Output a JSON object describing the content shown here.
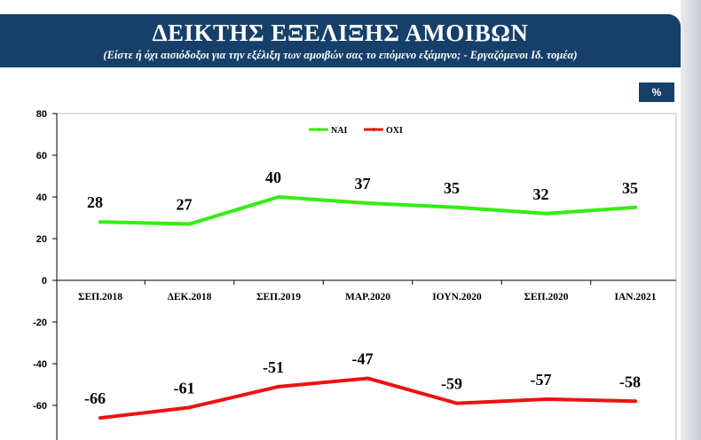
{
  "header": {
    "title": "ΔΕΙΚΤΗΣ ΕΞΕΛΙΞΗΣ ΑΜΟΙΒΩΝ",
    "subtitle": "(Είστε ή όχι αισιόδοξοι για την εξέλιξη των αμοιβών σας το επόμενο εξάμηνο; - Εργαζόμενοι Ιδ. τομέα)"
  },
  "unit_badge": "%",
  "colors": {
    "header_bg": "#16406a",
    "yes": "#33ee11",
    "no": "#ee1111"
  },
  "chart_data": {
    "type": "line",
    "title": "ΔΕΙΚΤΗΣ ΕΞΕΛΙΞΗΣ ΑΜΟΙΒΩΝ",
    "subtitle": "(Είστε ή όχι αισιόδοξοι για την εξέλιξη των αμοιβών σας το επόμενο εξάμηνο; - Εργαζόμενοι Ιδ. τομέα)",
    "unit": "%",
    "categories": [
      "ΣΕΠ.2018",
      "ΔΕΚ.2018",
      "ΣΕΠ.2019",
      "ΜΑΡ.2020",
      "ΙΟΥΝ.2020",
      "ΣΕΠ.2020",
      "ΙΑΝ.2021"
    ],
    "series": [
      {
        "name": "ΝΑΙ",
        "color": "#33ee11",
        "values": [
          28,
          27,
          40,
          37,
          35,
          32,
          35
        ]
      },
      {
        "name": "ΟΧΙ",
        "color": "#ee1111",
        "values": [
          -66,
          -61,
          -51,
          -47,
          -59,
          -57,
          -58
        ]
      }
    ],
    "yticks": [
      80,
      60,
      40,
      20,
      0,
      -20,
      -40,
      -60
    ],
    "legend_position": "top-center",
    "grid": false
  }
}
